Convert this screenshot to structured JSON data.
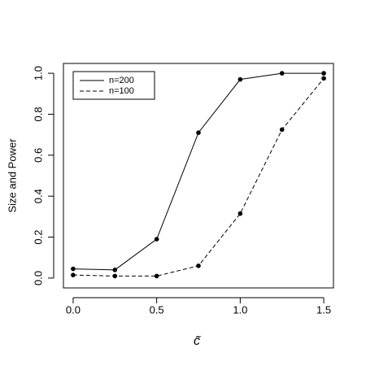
{
  "chart_data": {
    "type": "line",
    "xlabel": "c̃",
    "ylabel": "Size and Power",
    "x": [
      0,
      0.25,
      0.5,
      0.75,
      1,
      1.25,
      1.5
    ],
    "series": [
      {
        "name": "n=200",
        "color": "#000000",
        "linestyle": "solid",
        "values": [
          0.045,
          0.04,
          0.19,
          0.71,
          0.97,
          1.0,
          1.0
        ]
      },
      {
        "name": "n=100",
        "color": "#000000",
        "linestyle": "dashed",
        "values": [
          0.015,
          0.01,
          0.01,
          0.06,
          0.315,
          0.725,
          0.975
        ]
      }
    ],
    "xlim": [
      -0.058,
      1.558
    ],
    "ylim": [
      -0.048,
      1.048
    ],
    "xticks": [
      {
        "value": 0,
        "label": "0.0"
      },
      {
        "value": 0.5,
        "label": "0.5"
      },
      {
        "value": 1,
        "label": "1.0"
      },
      {
        "value": 1.5,
        "label": "1.5"
      }
    ],
    "yticks": [
      {
        "value": 0,
        "label": "0.0"
      },
      {
        "value": 0.2,
        "label": "0.2"
      },
      {
        "value": 0.4,
        "label": "0.4"
      },
      {
        "value": 0.6,
        "label": "0.6"
      },
      {
        "value": 0.8,
        "label": "0.8"
      },
      {
        "value": 1,
        "label": "1.0"
      }
    ],
    "legend": "top-left"
  }
}
